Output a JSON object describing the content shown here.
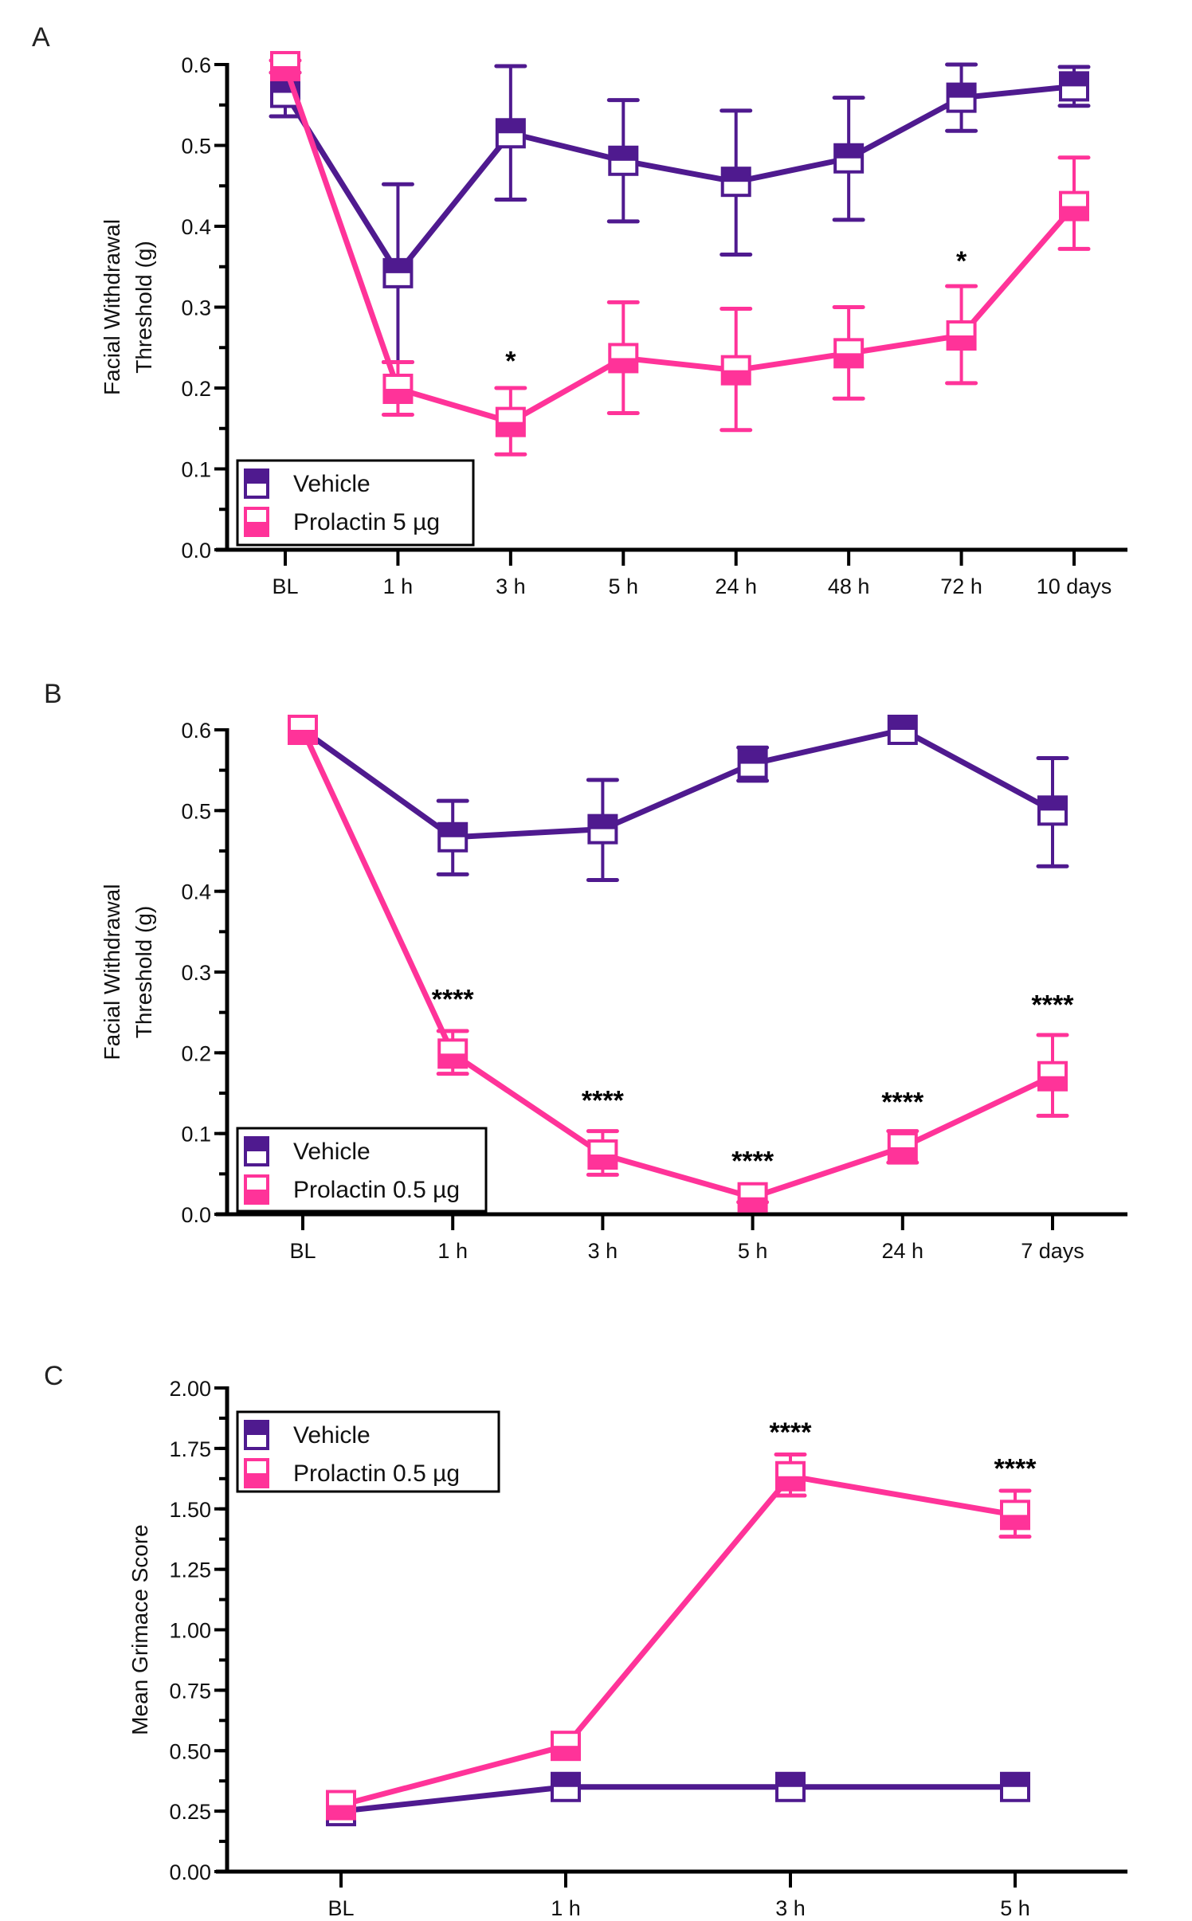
{
  "colors": {
    "vehicle": "#4F1A8F",
    "prolactin": "#FF3399",
    "axis": "#000000"
  },
  "chart_data": [
    {
      "id": "A",
      "panel_label": "A",
      "type": "line",
      "title": "",
      "xlabel": "",
      "ylabel_lines": [
        "Facial Withdrawal",
        "Threshold (g)"
      ],
      "categories": [
        "BL",
        "1 h",
        "3 h",
        "5 h",
        "24 h",
        "48 h",
        "72 h",
        "10 days"
      ],
      "ylim": [
        0,
        0.6
      ],
      "yticks": [
        0.0,
        0.1,
        0.2,
        0.3,
        0.4,
        0.5,
        0.6
      ],
      "ytick_labels": [
        "0.0",
        "0.1",
        "0.2",
        "0.3",
        "0.4",
        "0.5",
        "0.6"
      ],
      "y_minor_step": 0.05,
      "grid": false,
      "legend_position": "bottom-left",
      "series": [
        {
          "name": "Vehicle",
          "key": "vehicle",
          "marker": "square-top-filled",
          "values": [
            0.565,
            0.342,
            0.515,
            0.481,
            0.455,
            0.484,
            0.559,
            0.573
          ],
          "err_low": [
            0.536,
            0.232,
            0.433,
            0.406,
            0.365,
            0.408,
            0.518,
            0.549
          ],
          "err_high": [
            0.59,
            0.452,
            0.598,
            0.556,
            0.543,
            0.559,
            0.6,
            0.597
          ]
        },
        {
          "name": "Prolactin 5 µg",
          "key": "prolactin",
          "marker": "square-bottom-filled",
          "values": [
            0.598,
            0.199,
            0.158,
            0.237,
            0.222,
            0.243,
            0.265,
            0.425
          ],
          "err_low": [
            0.59,
            0.167,
            0.118,
            0.169,
            0.148,
            0.187,
            0.206,
            0.372
          ],
          "err_high": [
            0.605,
            0.232,
            0.2,
            0.306,
            0.298,
            0.3,
            0.326,
            0.485
          ]
        }
      ],
      "annotations": [
        {
          "category": "3 h",
          "text": "*",
          "y": 0.222
        },
        {
          "category": "72 h",
          "text": "*",
          "y": 0.346
        }
      ]
    },
    {
      "id": "B",
      "panel_label": "B",
      "type": "line",
      "title": "",
      "xlabel": "",
      "ylabel_lines": [
        "Facial Withdrawal",
        "Threshold (g)"
      ],
      "categories": [
        "BL",
        "1 h",
        "3 h",
        "5 h",
        "24 h",
        "7 days"
      ],
      "ylim": [
        0,
        0.6
      ],
      "yticks": [
        0.0,
        0.1,
        0.2,
        0.3,
        0.4,
        0.5,
        0.6
      ],
      "ytick_labels": [
        "0.0",
        "0.1",
        "0.2",
        "0.3",
        "0.4",
        "0.5",
        "0.6"
      ],
      "y_minor_step": 0.05,
      "grid": false,
      "legend_position": "bottom-left",
      "series": [
        {
          "name": "Vehicle",
          "key": "vehicle",
          "marker": "square-top-filled",
          "values": [
            0.6,
            0.467,
            0.477,
            0.558,
            0.6,
            0.5
          ],
          "err_low": [
            0.6,
            0.421,
            0.414,
            0.537,
            0.6,
            0.431
          ],
          "err_high": [
            0.6,
            0.512,
            0.538,
            0.578,
            0.6,
            0.565
          ]
        },
        {
          "name": "Prolactin 0.5 µg",
          "key": "prolactin",
          "marker": "square-bottom-filled",
          "values": [
            0.6,
            0.199,
            0.074,
            0.021,
            0.083,
            0.171
          ],
          "err_low": [
            0.6,
            0.174,
            0.049,
            0.015,
            0.064,
            0.122
          ],
          "err_high": [
            0.6,
            0.227,
            0.103,
            0.028,
            0.103,
            0.222
          ]
        }
      ],
      "annotations": [
        {
          "category": "1 h",
          "text": "****",
          "y": 0.255
        },
        {
          "category": "3 h",
          "text": "****",
          "y": 0.13
        },
        {
          "category": "5 h",
          "text": "****",
          "y": 0.055
        },
        {
          "category": "24 h",
          "text": "****",
          "y": 0.128
        },
        {
          "category": "7 days",
          "text": "****",
          "y": 0.248
        }
      ]
    },
    {
      "id": "C",
      "panel_label": "C",
      "type": "line",
      "title": "",
      "xlabel": "",
      "ylabel_lines": [
        "Mean Grimace Score"
      ],
      "categories": [
        "BL",
        "1 h",
        "3 h",
        "5 h"
      ],
      "ylim": [
        0,
        2.0
      ],
      "yticks": [
        0.0,
        0.25,
        0.5,
        0.75,
        1.0,
        1.25,
        1.5,
        1.75,
        2.0
      ],
      "ytick_labels": [
        "0.00",
        "0.25",
        "0.50",
        "0.75",
        "1.00",
        "1.25",
        "1.50",
        "1.75",
        "2.00"
      ],
      "y_minor_step": 0.125,
      "grid": false,
      "legend_position": "top-left",
      "series": [
        {
          "name": "Vehicle",
          "key": "vehicle",
          "marker": "square-top-filled",
          "values": [
            0.25,
            0.35,
            0.35,
            0.35
          ],
          "err_low": [
            0.25,
            0.35,
            0.35,
            0.35
          ],
          "err_high": [
            0.25,
            0.35,
            0.35,
            0.35
          ]
        },
        {
          "name": "Prolactin 0.5  µg",
          "key": "prolactin",
          "marker": "square-bottom-filled",
          "values": [
            0.275,
            0.52,
            1.635,
            1.475
          ],
          "err_low": [
            0.275,
            0.52,
            1.555,
            1.385
          ],
          "err_high": [
            0.275,
            0.52,
            1.725,
            1.575
          ]
        }
      ],
      "annotations": [
        {
          "category": "3 h",
          "text": "****",
          "y": 1.78
        },
        {
          "category": "5 h",
          "text": "****",
          "y": 1.63
        }
      ]
    }
  ]
}
